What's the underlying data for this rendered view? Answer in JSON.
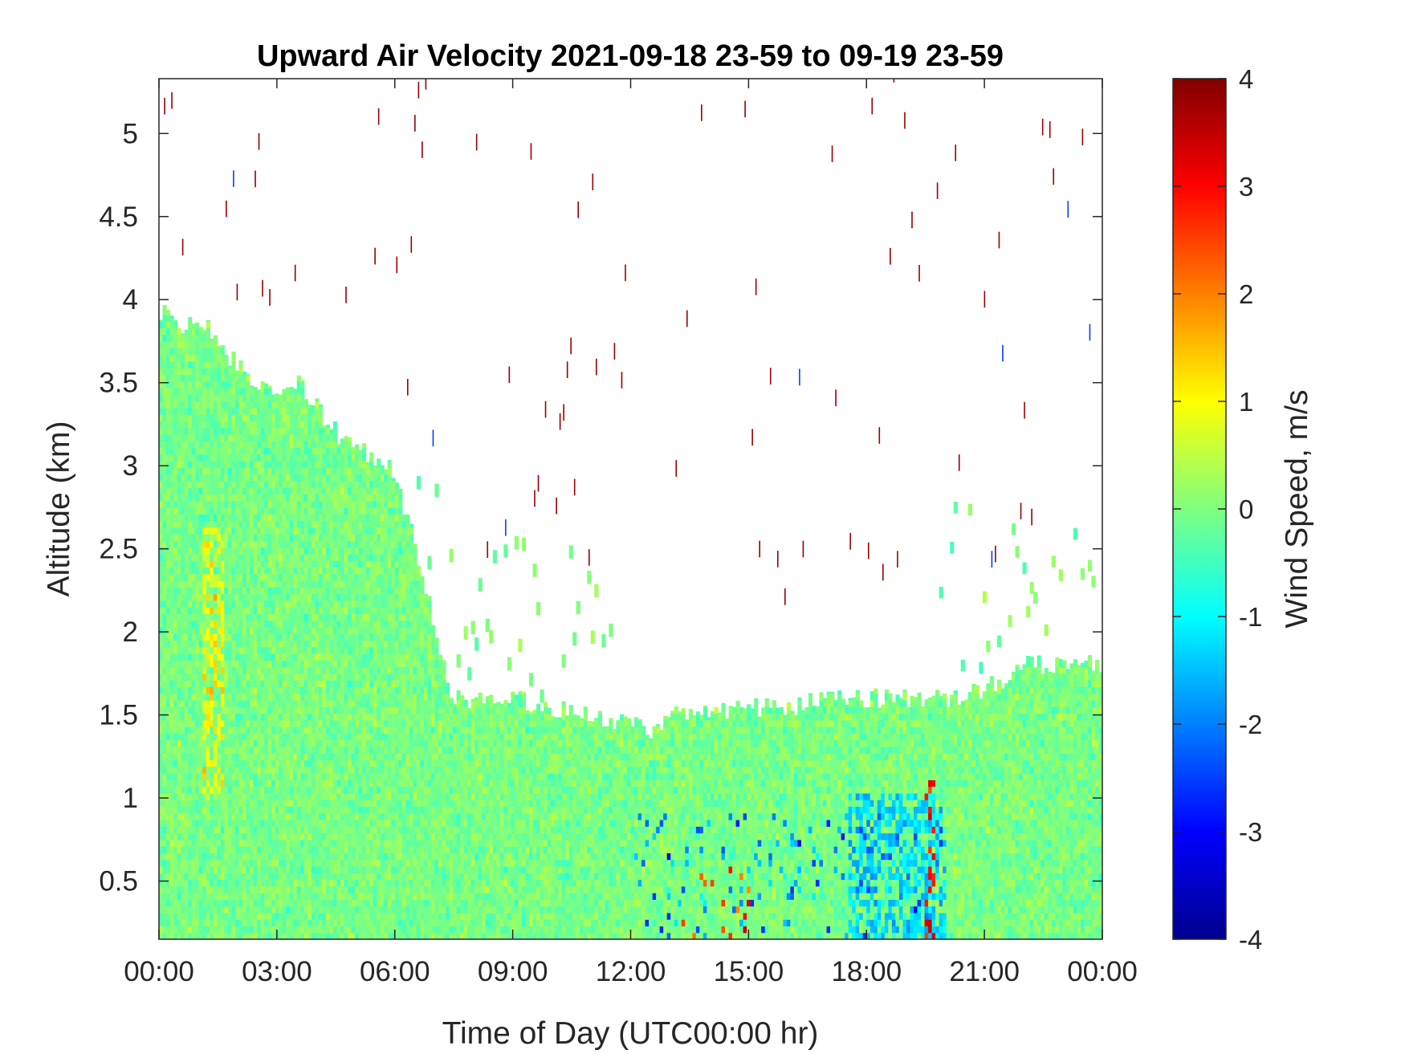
{
  "chart_data": {
    "type": "heatmap",
    "title": "Upward Air Velocity 2021-09-18 23-59 to 09-19 23-59",
    "xlabel": "Time of Day (UTC00:00 hr)",
    "ylabel": "Altitude (km)",
    "x_tick_labels": [
      "00:00",
      "03:00",
      "06:00",
      "09:00",
      "12:00",
      "15:00",
      "18:00",
      "21:00",
      "00:00"
    ],
    "x_ticks_hours": [
      0,
      3,
      6,
      9,
      12,
      15,
      18,
      21,
      24
    ],
    "xlim_hours": [
      0,
      24
    ],
    "y_tick_labels": [
      "0.5",
      "1",
      "1.5",
      "2",
      "2.5",
      "3",
      "3.5",
      "4",
      "4.5",
      "5"
    ],
    "y_ticks_km": [
      0.5,
      1,
      1.5,
      2,
      2.5,
      3,
      3.5,
      4,
      4.5,
      5
    ],
    "ylim_km": [
      0.15,
      5.33
    ],
    "colorbar": {
      "label": "Wind Speed, m/s",
      "colormap": "jet",
      "clim": [
        -4,
        4
      ],
      "tick_labels": [
        "4",
        "3",
        "2",
        "1",
        "0",
        "-1",
        "-2",
        "-3",
        "-4"
      ],
      "tick_values": [
        4,
        3,
        2,
        1,
        0,
        -1,
        -2,
        -3,
        -4
      ]
    },
    "grid": false,
    "data_top_km": {
      "hours": [
        0,
        0.5,
        1,
        1.5,
        2,
        2.5,
        3,
        3.5,
        4,
        4.5,
        5,
        5.5,
        6,
        6.5,
        7,
        7.5,
        8,
        9,
        10,
        11,
        12,
        12.5,
        13,
        14,
        15,
        16,
        17,
        18,
        19,
        20,
        21,
        22,
        23,
        24
      ],
      "km": [
        3.95,
        3.8,
        3.9,
        3.75,
        3.6,
        3.5,
        3.45,
        3.5,
        3.35,
        3.2,
        3.1,
        3.05,
        2.95,
        2.55,
        2.05,
        1.6,
        1.6,
        1.6,
        1.55,
        1.5,
        1.45,
        1.4,
        1.5,
        1.5,
        1.55,
        1.55,
        1.6,
        1.6,
        1.6,
        1.6,
        1.65,
        1.8,
        1.8,
        1.8
      ]
    },
    "notable_features": [
      {
        "hours": [
          19.4,
          19.7
        ],
        "km": [
          0.15,
          1.15
        ],
        "value_ms": 3
      },
      {
        "hours": [
          17.5,
          20
        ],
        "km": [
          0.15,
          1.0
        ],
        "value_ms": -1.3
      },
      {
        "hours": [
          1.1,
          1.6
        ],
        "km": [
          1.0,
          2.6
        ],
        "value_ms": 1
      }
    ]
  }
}
